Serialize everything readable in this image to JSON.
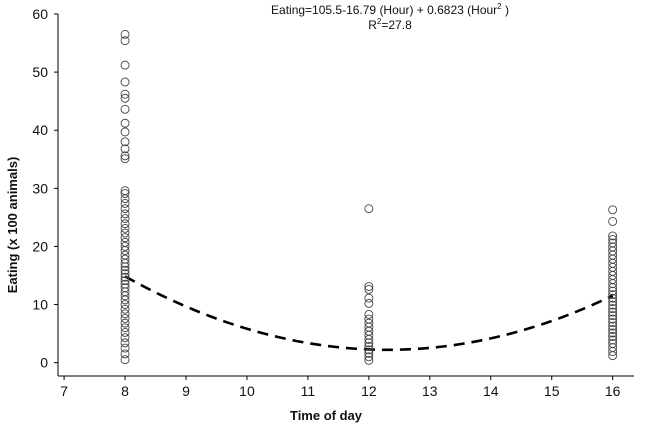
{
  "annotation": {
    "eq_prefix": "Eating=105.5-16.79 (Hour) + 0.6823 (Hour",
    "eq_sup": "2",
    "eq_suffix": " )",
    "r_prefix": "R",
    "r_sup": "2",
    "r_suffix": "=27.8"
  },
  "chart_data": {
    "type": "scatter",
    "title": "",
    "xlabel": "Time of day",
    "ylabel": "Eating (x 100 animals)",
    "xlim": [
      6.9,
      16.35
    ],
    "ylim": [
      -2.3,
      60
    ],
    "xticks": [
      7,
      8,
      9,
      10,
      11,
      12,
      13,
      14,
      15,
      16
    ],
    "yticks": [
      0,
      10,
      20,
      30,
      40,
      50,
      60
    ],
    "grid": false,
    "points": {
      "8": [
        56.5,
        55.4,
        51.2,
        48.3,
        46.2,
        45.5,
        43.6,
        41.2,
        39.7,
        38.0,
        36.8,
        35.6,
        35.1,
        29.6,
        29.1,
        28.2,
        27.4,
        26.5,
        25.6,
        24.8,
        23.9,
        23.1,
        22.3,
        21.5,
        20.7,
        20.0,
        19.3,
        18.5,
        17.8,
        17.1,
        16.5,
        15.9,
        15.3,
        14.7,
        14.1,
        13.5,
        12.9,
        12.2,
        11.5,
        10.8,
        10.0,
        9.2,
        8.4,
        7.6,
        6.8,
        6.0,
        5.2,
        4.3,
        3.4,
        2.5,
        1.5,
        0.5
      ],
      "12": [
        26.5,
        13.1,
        12.6,
        11.1,
        10.2,
        8.3,
        7.5,
        6.8,
        6.1,
        5.4,
        4.7,
        4.0,
        3.4,
        2.8,
        2.2,
        1.6,
        1.0,
        0.4
      ],
      "16": [
        26.3,
        24.3,
        21.8,
        21.2,
        20.6,
        19.9,
        19.2,
        18.5,
        17.8,
        17.1,
        16.4,
        15.7,
        15.0,
        14.3,
        13.6,
        12.9,
        12.3,
        11.7,
        11.1,
        10.5,
        9.9,
        9.3,
        8.7,
        8.1,
        7.5,
        6.9,
        6.3,
        5.7,
        5.1,
        4.5,
        3.9,
        3.3,
        2.6,
        1.9,
        1.2
      ]
    },
    "fit": {
      "formula": "105.5 - 16.79*x + 0.6823*x^2",
      "coefficients": [
        105.5,
        -16.79,
        0.6823
      ],
      "x_range": [
        8,
        16
      ],
      "style": "dashed"
    },
    "marker": "open-circle",
    "colors": {
      "marker": "#444444",
      "fit": "#000000",
      "axis": "#000000"
    }
  }
}
